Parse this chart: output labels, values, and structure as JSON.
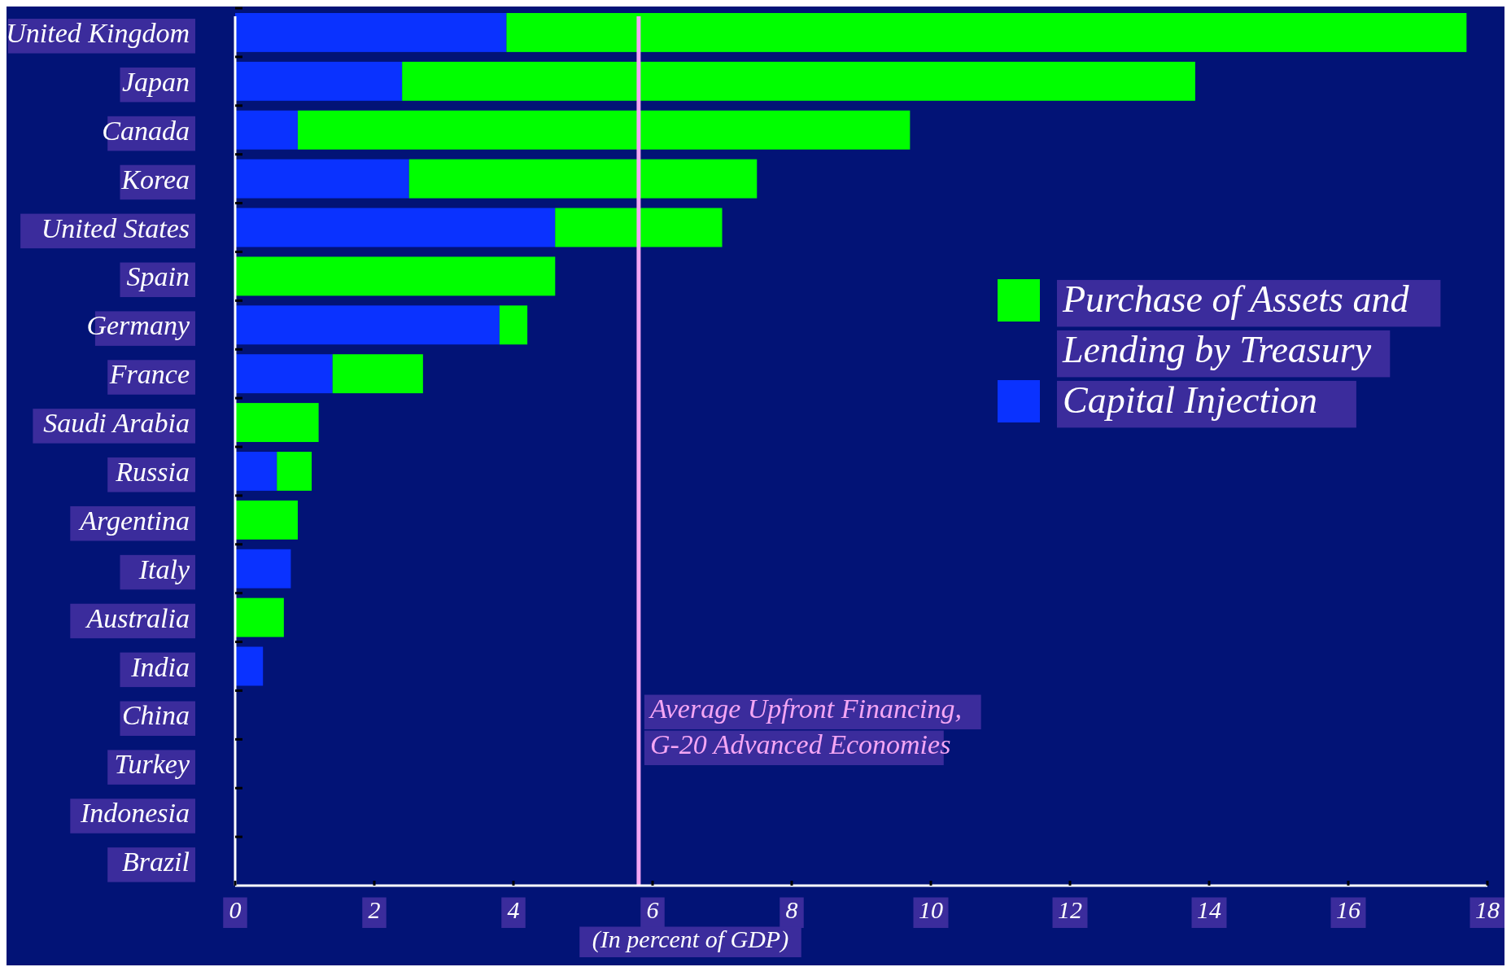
{
  "chart_data": {
    "type": "bar",
    "orientation": "horizontal",
    "stacked": true,
    "categories": [
      "United Kingdom",
      "Japan",
      "Canada",
      "Korea",
      "United States",
      "Spain",
      "Germany",
      "France",
      "Saudi Arabia",
      "Russia",
      "Argentina",
      "Italy",
      "Australia",
      "India",
      "China",
      "Turkey",
      "Indonesia",
      "Brazil"
    ],
    "series": [
      {
        "name": "Capital Injection",
        "color": "#0a32ff",
        "values": [
          3.9,
          2.4,
          0.9,
          2.5,
          4.6,
          0,
          3.8,
          1.4,
          0,
          0.6,
          0,
          0.8,
          0,
          0.4,
          0,
          0,
          0,
          0
        ]
      },
      {
        "name": "Purchase of Assets and Lending by Treasury",
        "color": "#00ff00",
        "values": [
          13.8,
          11.4,
          8.8,
          5.0,
          2.4,
          4.6,
          0.4,
          1.3,
          1.2,
          0.5,
          0.9,
          0,
          0.7,
          0,
          0,
          0,
          0,
          0
        ]
      }
    ],
    "xlabel": "(In percent of GDP)",
    "xlim": [
      0,
      18
    ],
    "xticks": [
      0,
      2,
      4,
      6,
      8,
      10,
      12,
      14,
      16,
      18
    ],
    "legend": "right",
    "ref_lines": [
      {
        "axis": "x",
        "value": 5.8,
        "label": "Average Upfront Financing, G-20 Advanced Economies",
        "color": "#f4a6f4"
      }
    ]
  }
}
